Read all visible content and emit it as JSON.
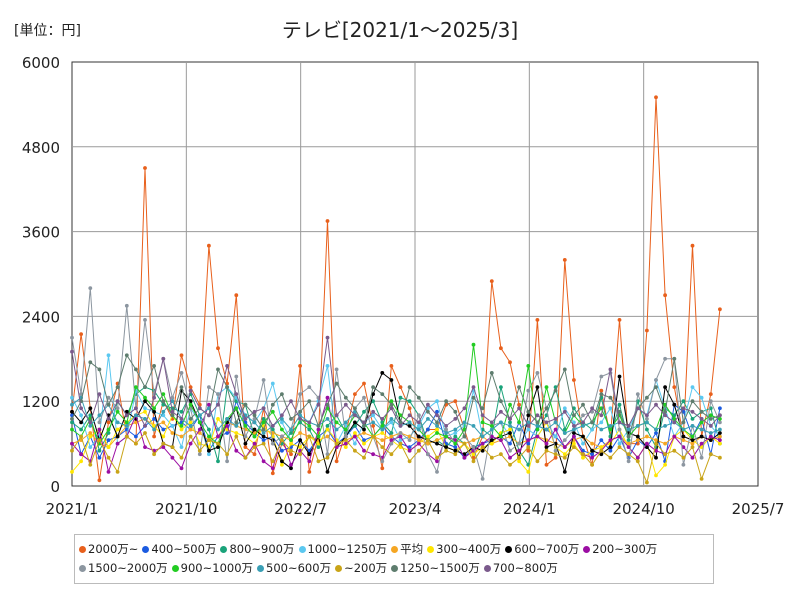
{
  "unit_label": "[単位：円]",
  "chart_data": {
    "type": "line",
    "title": "テレビ[2021/1～2025/3]",
    "x_ticks": [
      "2021/1",
      "2021/10",
      "2022/7",
      "2023/4",
      "2024/1",
      "2024/10",
      "2025/7"
    ],
    "y_ticks": [
      "0",
      "1200",
      "2400",
      "3600",
      "4800",
      "6000"
    ],
    "ylim": [
      0,
      6000
    ],
    "grid": true,
    "legend_position": "bottom",
    "series": [
      {
        "name": "2000万~",
        "color": "#e8601c",
        "values": [
          1050,
          2150,
          1100,
          80,
          900,
          1450,
          700,
          600,
          4500,
          700,
          1200,
          950,
          1850,
          1400,
          1150,
          3400,
          1950,
          1450,
          2700,
          550,
          450,
          1100,
          180,
          600,
          450,
          1700,
          200,
          700,
          3750,
          350,
          750,
          1300,
          1450,
          850,
          250,
          1700,
          1400,
          1100,
          600,
          800,
          800,
          1150,
          1200,
          800,
          400,
          700,
          2900,
          1950,
          1750,
          1150,
          500,
          2350,
          300,
          400,
          3200,
          1500,
          700,
          300,
          1350,
          700,
          2350,
          600,
          600,
          2200,
          5500,
          2700,
          1400,
          700,
          3400,
          700,
          1300,
          2500
        ]
      },
      {
        "name": "400~500万",
        "color": "#1b5be0",
        "values": [
          1000,
          450,
          700,
          400,
          650,
          700,
          800,
          700,
          850,
          950,
          800,
          850,
          900,
          800,
          1000,
          500,
          700,
          750,
          1200,
          900,
          750,
          650,
          700,
          500,
          550,
          650,
          500,
          700,
          800,
          600,
          700,
          850,
          650,
          700,
          850,
          700,
          600,
          550,
          650,
          800,
          1050,
          600,
          550,
          400,
          550,
          600,
          650,
          700,
          600,
          900,
          600,
          850,
          800,
          700,
          550,
          700,
          500,
          450,
          650,
          500,
          700,
          400,
          650,
          550,
          750,
          350,
          1150,
          1050,
          700,
          950,
          450,
          1100
        ]
      },
      {
        "name": "800~900万",
        "color": "#1aa37a",
        "values": [
          900,
          800,
          1000,
          500,
          750,
          1200,
          1000,
          1300,
          1400,
          1350,
          1150,
          1100,
          1050,
          1300,
          1000,
          800,
          350,
          1400,
          1200,
          1150,
          700,
          950,
          800,
          600,
          750,
          900,
          800,
          550,
          850,
          1000,
          750,
          850,
          1050,
          1200,
          900,
          750,
          1250,
          1200,
          1000,
          600,
          650,
          550,
          700,
          600,
          450,
          800,
          700,
          1400,
          900,
          500,
          300,
          800,
          1000,
          1400,
          800,
          1100,
          900,
          800,
          1250,
          700,
          1150,
          650,
          1200,
          800,
          550,
          1100,
          1000,
          1200,
          950,
          1050,
          1100,
          600
        ]
      },
      {
        "name": "1000~1250万",
        "color": "#5bc8f0",
        "values": [
          1250,
          1000,
          550,
          700,
          1850,
          600,
          700,
          1350,
          1100,
          1050,
          1000,
          850,
          550,
          1100,
          900,
          450,
          1300,
          1400,
          1250,
          1000,
          900,
          1100,
          1450,
          900,
          650,
          950,
          900,
          1200,
          1700,
          600,
          850,
          600,
          900,
          1000,
          800,
          900,
          650,
          700,
          850,
          1100,
          1200,
          700,
          750,
          850,
          1350,
          700,
          800,
          900,
          700,
          600,
          800,
          700,
          900,
          700,
          1100,
          900,
          600,
          800,
          900,
          1100,
          600,
          800,
          1100,
          1000,
          1500,
          1100,
          700,
          900,
          1400,
          1250,
          850,
          700
        ]
      },
      {
        "name": "平均",
        "color": "#f5a623",
        "values": [
          600,
          650,
          750,
          600,
          550,
          700,
          850,
          900,
          950,
          850,
          900,
          750,
          700,
          800,
          750,
          650,
          700,
          900,
          850,
          800,
          750,
          800,
          750,
          700,
          650,
          750,
          700,
          650,
          700,
          600,
          650,
          700,
          750,
          700,
          650,
          700,
          750,
          700,
          650,
          600,
          650,
          700,
          650,
          600,
          650,
          700,
          600,
          650,
          700,
          600,
          650,
          700,
          650,
          600,
          550,
          650,
          700,
          600,
          550,
          650,
          700,
          600,
          650,
          700,
          650,
          600,
          700,
          650,
          600,
          700,
          650,
          700
        ]
      },
      {
        "name": "300~400万",
        "color": "#ffe600",
        "values": [
          200,
          350,
          700,
          800,
          550,
          800,
          900,
          1000,
          1050,
          850,
          700,
          1000,
          800,
          900,
          600,
          550,
          950,
          800,
          750,
          700,
          600,
          850,
          700,
          300,
          600,
          550,
          700,
          600,
          800,
          650,
          550,
          750,
          600,
          700,
          750,
          650,
          550,
          500,
          600,
          700,
          800,
          550,
          500,
          600,
          450,
          550,
          600,
          750,
          800,
          350,
          200,
          700,
          900,
          550,
          450,
          600,
          400,
          500,
          550,
          600,
          800,
          550,
          400,
          600,
          150,
          300,
          700,
          800,
          650,
          550,
          700,
          600
        ]
      },
      {
        "name": "600~700万",
        "color": "#000000",
        "values": [
          1050,
          900,
          1100,
          650,
          1000,
          700,
          1050,
          950,
          1200,
          1050,
          600,
          550,
          1350,
          1200,
          900,
          500,
          550,
          900,
          1100,
          600,
          800,
          700,
          650,
          350,
          250,
          650,
          450,
          700,
          200,
          550,
          700,
          900,
          800,
          1300,
          1600,
          1500,
          900,
          850,
          700,
          650,
          600,
          550,
          500,
          450,
          550,
          500,
          650,
          700,
          750,
          400,
          1000,
          1400,
          550,
          600,
          200,
          750,
          700,
          500,
          450,
          550,
          1550,
          750,
          700,
          550,
          400,
          1400,
          1150,
          700,
          650,
          700,
          650,
          750
        ]
      },
      {
        "name": "200~300万",
        "color": "#9b0ea3",
        "values": [
          600,
          450,
          350,
          800,
          200,
          600,
          700,
          1000,
          550,
          500,
          550,
          400,
          250,
          600,
          800,
          1150,
          700,
          850,
          500,
          400,
          600,
          350,
          250,
          700,
          300,
          500,
          350,
          800,
          1250,
          550,
          600,
          700,
          500,
          450,
          400,
          650,
          700,
          500,
          600,
          450,
          350,
          700,
          650,
          400,
          500,
          600,
          700,
          650,
          400,
          500,
          650,
          700,
          600,
          800,
          550,
          700,
          450,
          400,
          500,
          650,
          700,
          550,
          400,
          600,
          500,
          450,
          700,
          550,
          400,
          600,
          700,
          650
        ]
      },
      {
        "name": "1500~2000万",
        "color": "#8c96a0",
        "values": [
          2100,
          1300,
          2800,
          900,
          1250,
          1100,
          2550,
          1100,
          2350,
          1300,
          1800,
          1250,
          1600,
          1100,
          450,
          1400,
          1300,
          350,
          1550,
          700,
          950,
          1500,
          600,
          700,
          800,
          1300,
          1400,
          1250,
          450,
          1650,
          700,
          1100,
          1250,
          700,
          350,
          600,
          750,
          650,
          1000,
          450,
          200,
          800,
          600,
          700,
          550,
          100,
          850,
          900,
          500,
          600,
          1350,
          1600,
          1100,
          500,
          650,
          800,
          1000,
          1050,
          1550,
          1600,
          800,
          350,
          1300,
          950,
          1500,
          1800,
          1800,
          300,
          850,
          400,
          1200,
          900
        ]
      },
      {
        "name": "900~1000万",
        "color": "#22cc22",
        "values": [
          800,
          700,
          950,
          600,
          800,
          1050,
          900,
          1400,
          1250,
          1100,
          1300,
          1000,
          850,
          1150,
          900,
          700,
          600,
          950,
          1100,
          850,
          700,
          900,
          1050,
          800,
          650,
          950,
          850,
          700,
          1100,
          900,
          800,
          1000,
          900,
          700,
          850,
          1200,
          1000,
          900,
          800,
          650,
          750,
          700,
          600,
          800,
          2000,
          900,
          850,
          700,
          1150,
          900,
          1700,
          800,
          1400,
          900,
          750,
          1000,
          850,
          900,
          1100,
          800,
          1000,
          700,
          850,
          900,
          800,
          1150,
          950,
          800,
          700,
          900,
          1000,
          950
        ]
      },
      {
        "name": "500~600万",
        "color": "#3a9fb5",
        "values": [
          1150,
          1250,
          850,
          1000,
          1150,
          900,
          850,
          1000,
          950,
          800,
          1050,
          1200,
          950,
          850,
          1000,
          1100,
          800,
          950,
          850,
          1000,
          900,
          750,
          850,
          950,
          800,
          1000,
          900,
          850,
          950,
          800,
          900,
          1050,
          850,
          900,
          800,
          950,
          850,
          900,
          800,
          950,
          850,
          750,
          800,
          900,
          850,
          700,
          800,
          900,
          850,
          800,
          900,
          850,
          800,
          900,
          750,
          800,
          850,
          900,
          800,
          850,
          900,
          800,
          850,
          900,
          800,
          850,
          900,
          800,
          850,
          800,
          750,
          800
        ]
      },
      {
        "name": "~200万",
        "color": "#c9a418",
        "values": [
          500,
          700,
          300,
          650,
          400,
          200,
          700,
          600,
          750,
          450,
          600,
          550,
          400,
          700,
          500,
          650,
          600,
          450,
          700,
          400,
          550,
          600,
          350,
          650,
          500,
          450,
          700,
          350,
          400,
          600,
          650,
          500,
          400,
          700,
          550,
          450,
          600,
          350,
          500,
          650,
          400,
          500,
          450,
          600,
          350,
          550,
          400,
          450,
          300,
          400,
          550,
          350,
          500,
          450,
          400,
          550,
          450,
          300,
          500,
          400,
          550,
          450,
          350,
          50,
          600,
          450,
          500,
          400,
          550,
          100,
          450,
          400
        ]
      },
      {
        "name": "1250~1500万",
        "color": "#5e7d6e",
        "values": [
          950,
          1200,
          1750,
          1650,
          1150,
          1400,
          1850,
          1650,
          1400,
          1700,
          1200,
          1000,
          1400,
          950,
          1100,
          1000,
          1650,
          1400,
          900,
          1150,
          1000,
          800,
          1150,
          1300,
          950,
          1050,
          1200,
          850,
          1150,
          1450,
          1250,
          1100,
          850,
          1400,
          1300,
          1150,
          900,
          1400,
          1250,
          1050,
          900,
          1200,
          1050,
          700,
          1250,
          1100,
          1600,
          1200,
          950,
          1400,
          1050,
          900,
          1100,
          1350,
          1650,
          1000,
          1150,
          900,
          1300,
          1250,
          1050,
          700,
          1100,
          1250,
          1400,
          1050,
          1800,
          900,
          1200,
          1050,
          950,
          1000
        ]
      },
      {
        "name": "700~800万",
        "color": "#7b5a8c",
        "values": [
          1900,
          1100,
          900,
          1300,
          950,
          1200,
          1000,
          1100,
          850,
          1250,
          1800,
          1050,
          950,
          1350,
          1100,
          1000,
          1150,
          1700,
          1300,
          950,
          1050,
          1100,
          850,
          1000,
          1200,
          950,
          900,
          1150,
          2100,
          1000,
          1150,
          1000,
          900,
          1050,
          950,
          1100,
          850,
          1000,
          900,
          1150,
          1000,
          850,
          950,
          1100,
          1400,
          1000,
          900,
          1050,
          950,
          1100,
          850,
          1000,
          900,
          950,
          1050,
          850,
          900,
          1100,
          1000,
          1650,
          900,
          850,
          1100,
          1000,
          1150,
          1000,
          900,
          1100,
          1050,
          950,
          850,
          1000
        ]
      }
    ]
  }
}
